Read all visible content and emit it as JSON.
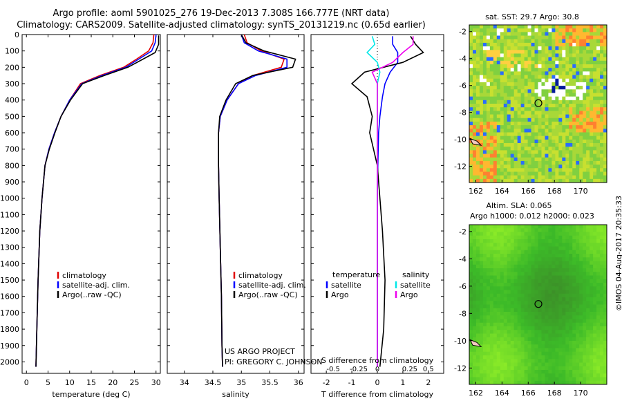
{
  "header": {
    "line1": "Argo profile: aoml 5901025_276 19-Dec-2013 7.308S 166.777E (NRT data)",
    "line2": "Climatology: CARS2009. Satellite-adjusted climatology: synTS_20131219.nc (0.65d earlier)"
  },
  "project": {
    "line1": "US ARGO PROJECT",
    "line2": "PI: GREGORY C. JOHNSON"
  },
  "credit": "©IMOS 04-Aug-2017 20:35:33",
  "colors": {
    "clim": "#e00000",
    "sat": "#0000ff",
    "argo": "#000000",
    "sal_sat": "#00e8e8",
    "sal_argo": "#ee00ee"
  },
  "chart_data": [
    {
      "type": "line",
      "title": "",
      "xlabel": "temperature (deg C)",
      "ylabel": "",
      "xlim": [
        -1,
        31
      ],
      "ylim": [
        2070,
        0
      ],
      "xticks": [
        0,
        5,
        10,
        15,
        20,
        25,
        30
      ],
      "yticks": [
        0,
        100,
        200,
        300,
        400,
        500,
        600,
        700,
        800,
        900,
        1000,
        1100,
        1200,
        1300,
        1400,
        1500,
        1600,
        1700,
        1800,
        1900,
        2000
      ],
      "legend": [
        "climatology",
        "satellite-adj. clim.",
        "Argo(..raw -QC)"
      ],
      "series": [
        {
          "name": "climatology",
          "color": "clim",
          "x": [
            29.5,
            29.3,
            28.3,
            25.5,
            22.5,
            17.0,
            12.5,
            10.0,
            8.0,
            6.5,
            5.2,
            4.3,
            3.6,
            3.1,
            2.7,
            2.4,
            2.2
          ],
          "y": [
            0,
            50,
            100,
            150,
            200,
            250,
            300,
            400,
            500,
            600,
            700,
            800,
            1000,
            1200,
            1500,
            1800,
            2030
          ]
        },
        {
          "name": "satellite-adj. clim.",
          "color": "sat",
          "x": [
            30.0,
            29.8,
            29.0,
            26.0,
            23.0,
            17.5,
            12.8,
            10.0,
            8.0,
            6.5,
            5.2,
            4.3,
            3.6,
            3.1,
            2.7,
            2.4,
            2.2
          ],
          "y": [
            0,
            50,
            100,
            150,
            200,
            250,
            300,
            400,
            500,
            600,
            700,
            800,
            1000,
            1200,
            1500,
            1800,
            2030
          ]
        },
        {
          "name": "Argo(..raw -QC)",
          "color": "argo",
          "x": [
            30.6,
            30.6,
            29.8,
            27.0,
            23.5,
            18.0,
            13.0,
            10.2,
            8.0,
            6.6,
            5.3,
            4.3,
            3.6,
            3.1,
            2.7,
            2.4,
            2.2
          ],
          "y": [
            5,
            60,
            110,
            150,
            200,
            250,
            300,
            400,
            500,
            600,
            700,
            800,
            1000,
            1200,
            1500,
            1800,
            2030
          ]
        }
      ]
    },
    {
      "type": "line",
      "title": "",
      "xlabel": "salinity",
      "ylabel": "",
      "xlim": [
        33.7,
        36.1
      ],
      "ylim": [
        2070,
        0
      ],
      "xticks": [
        34,
        34.5,
        35,
        35.5,
        36
      ],
      "yticks": [
        0,
        100,
        200,
        300,
        400,
        500,
        600,
        700,
        800,
        900,
        1000,
        1100,
        1200,
        1300,
        1400,
        1500,
        1600,
        1700,
        1800,
        1900,
        2000
      ],
      "legend": [
        "climatology",
        "satellite-adj. clim.",
        "Argo(..raw -QC)"
      ],
      "series": [
        {
          "name": "climatology",
          "color": "clim",
          "x": [
            35.05,
            35.1,
            35.35,
            35.75,
            35.7,
            35.2,
            34.95,
            34.75,
            34.63,
            34.6,
            34.6,
            34.61,
            34.63,
            34.65,
            34.66,
            34.67
          ],
          "y": [
            0,
            50,
            100,
            150,
            200,
            250,
            300,
            400,
            500,
            600,
            800,
            1000,
            1300,
            1600,
            1900,
            2030
          ]
        },
        {
          "name": "satellite-adj. clim.",
          "color": "sat",
          "x": [
            35.0,
            35.05,
            35.3,
            35.8,
            35.8,
            35.25,
            34.95,
            34.75,
            34.63,
            34.6,
            34.6,
            34.61,
            34.63,
            34.65,
            34.66,
            34.67
          ],
          "y": [
            0,
            50,
            100,
            150,
            200,
            250,
            300,
            400,
            500,
            600,
            800,
            1000,
            1300,
            1600,
            1900,
            2030
          ]
        },
        {
          "name": "Argo(..raw -QC)",
          "color": "argo",
          "x": [
            35.0,
            35.08,
            35.4,
            35.95,
            35.9,
            35.2,
            34.9,
            34.73,
            34.62,
            34.6,
            34.6,
            34.61,
            34.63,
            34.65,
            34.66,
            34.67
          ],
          "y": [
            0,
            50,
            100,
            150,
            200,
            250,
            300,
            400,
            500,
            600,
            800,
            1000,
            1300,
            1600,
            1900,
            2030
          ]
        }
      ]
    },
    {
      "type": "line",
      "title": "",
      "xlabel": "T difference from climatology",
      "xlabel2": "S difference from climatology",
      "ylabel": "",
      "xlim": [
        -2.6,
        2.6
      ],
      "ylim": [
        2070,
        0
      ],
      "xticks": [
        -2,
        -1,
        0,
        1,
        2
      ],
      "xticks_top_labels": [
        "-0.5",
        "-0.25",
        "0",
        "0.25",
        "0.5"
      ],
      "legend_temperature": "temperature",
      "legend_salinity": "salinity",
      "legend_entries": [
        "satellite",
        "Argo",
        "satellite",
        "Argo"
      ],
      "series": [
        {
          "name": "temperature satellite",
          "color": "sat",
          "x": [
            0.6,
            0.6,
            0.8,
            0.8,
            0.5,
            0.3,
            0.2,
            0.1,
            0.05,
            0.02,
            0.0,
            0.0,
            0.0,
            0.0,
            0.0
          ],
          "y": [
            10,
            60,
            110,
            170,
            230,
            300,
            380,
            500,
            600,
            800,
            1000,
            1200,
            1500,
            1800,
            2030
          ]
        },
        {
          "name": "temperature Argo",
          "color": "argo",
          "x": [
            1.3,
            1.5,
            1.8,
            1.0,
            -0.5,
            -1.0,
            -0.4,
            -0.2,
            -0.3,
            0.0,
            0.1,
            0.2,
            0.3,
            0.25,
            0.1
          ],
          "y": [
            10,
            60,
            110,
            170,
            230,
            300,
            380,
            500,
            600,
            800,
            1000,
            1200,
            1500,
            1800,
            2030
          ]
        },
        {
          "name": "salinity satellite",
          "color": "sal_sat",
          "x": [
            -0.2,
            -0.1,
            -0.4,
            0.0,
            0.1,
            0.0,
            0.0,
            0.0,
            0.0,
            0.0,
            0.0,
            0.0,
            0.0,
            0.0,
            0.0
          ],
          "y": [
            10,
            60,
            110,
            170,
            230,
            300,
            380,
            500,
            600,
            800,
            1000,
            1200,
            1500,
            1800,
            2030
          ]
        },
        {
          "name": "salinity Argo",
          "color": "sal_argo",
          "x": [
            1.4,
            1.4,
            1.0,
            0.6,
            -0.2,
            0.0,
            0.0,
            0.0,
            0.0,
            0.0,
            0.0,
            0.0,
            0.0,
            0.0,
            0.0
          ],
          "y": [
            10,
            60,
            110,
            170,
            230,
            300,
            380,
            500,
            600,
            800,
            1000,
            1200,
            1500,
            1800,
            2030
          ]
        }
      ]
    },
    {
      "type": "heatmap",
      "title": "sat. SST: 29.7  Argo: 30.8",
      "xticks": [
        162,
        164,
        166,
        168,
        170
      ],
      "yticks": [
        -2,
        -4,
        -6,
        -8,
        -10,
        -12
      ],
      "xlim": [
        161.5,
        172
      ],
      "ylim": [
        -13.2,
        -1.5
      ],
      "marker": {
        "lon": 166.777,
        "lat": -7.308
      }
    },
    {
      "type": "heatmap",
      "title": "Altim. SLA: 0.065",
      "subtitle": "Argo h1000: 0.012  h2000: 0.023",
      "xticks": [
        162,
        164,
        166,
        168,
        170
      ],
      "yticks": [
        -2,
        -4,
        -6,
        -8,
        -10,
        -12
      ],
      "xlim": [
        161.5,
        172
      ],
      "ylim": [
        -13.2,
        -1.5
      ],
      "marker": {
        "lon": 166.777,
        "lat": -7.308
      }
    }
  ]
}
